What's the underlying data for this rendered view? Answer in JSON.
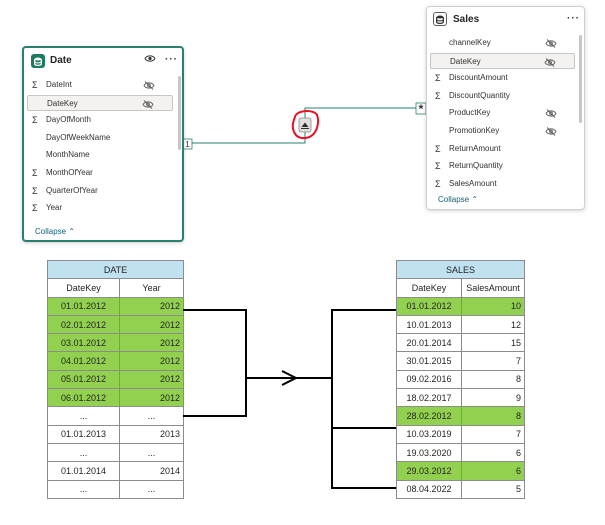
{
  "date_table": {
    "title": "Date",
    "collapse_label": "Collapse",
    "fields": [
      {
        "name": "DateInt",
        "sigma": true,
        "hidden": true,
        "selected": false
      },
      {
        "name": "DateKey",
        "sigma": false,
        "hidden": true,
        "selected": true
      },
      {
        "name": "DayOfMonth",
        "sigma": true,
        "hidden": false,
        "selected": false
      },
      {
        "name": "DayOfWeekName",
        "sigma": false,
        "hidden": false,
        "selected": false
      },
      {
        "name": "MonthName",
        "sigma": false,
        "hidden": false,
        "selected": false
      },
      {
        "name": "MonthOfYear",
        "sigma": true,
        "hidden": false,
        "selected": false
      },
      {
        "name": "QuarterOfYear",
        "sigma": true,
        "hidden": false,
        "selected": false
      },
      {
        "name": "Year",
        "sigma": true,
        "hidden": false,
        "selected": false
      }
    ]
  },
  "sales_table": {
    "title": "Sales",
    "collapse_label": "Collapse",
    "fields": [
      {
        "name": "channelKey",
        "sigma": false,
        "hidden": true,
        "selected": false
      },
      {
        "name": "DateKey",
        "sigma": false,
        "hidden": true,
        "selected": true
      },
      {
        "name": "DiscountAmount",
        "sigma": true,
        "hidden": false,
        "selected": false
      },
      {
        "name": "DiscountQuantity",
        "sigma": true,
        "hidden": false,
        "selected": false
      },
      {
        "name": "ProductKey",
        "sigma": false,
        "hidden": true,
        "selected": false
      },
      {
        "name": "PromotionKey",
        "sigma": false,
        "hidden": true,
        "selected": false
      },
      {
        "name": "ReturnAmount",
        "sigma": true,
        "hidden": false,
        "selected": false
      },
      {
        "name": "ReturnQuantity",
        "sigma": true,
        "hidden": false,
        "selected": false
      },
      {
        "name": "SalesAmount",
        "sigma": true,
        "hidden": false,
        "selected": false
      }
    ]
  },
  "relationship": {
    "one_label": "1",
    "many_label": "*"
  },
  "date_grid": {
    "title": "DATE",
    "headers": [
      "DateKey",
      "Year"
    ],
    "rows": [
      {
        "k": "01.01.2012",
        "v": "2012",
        "hl": true
      },
      {
        "k": "02.01.2012",
        "v": "2012",
        "hl": true
      },
      {
        "k": "03.01.2012",
        "v": "2012",
        "hl": true
      },
      {
        "k": "04.01.2012",
        "v": "2012",
        "hl": true
      },
      {
        "k": "05.01.2012",
        "v": "2012",
        "hl": true
      },
      {
        "k": "06.01.2012",
        "v": "2012",
        "hl": true
      },
      {
        "k": "...",
        "v": "...",
        "hl": false
      },
      {
        "k": "01.01.2013",
        "v": "2013",
        "hl": false
      },
      {
        "k": "...",
        "v": "...",
        "hl": false
      },
      {
        "k": "01.01.2014",
        "v": "2014",
        "hl": false
      },
      {
        "k": "...",
        "v": "...",
        "hl": false
      }
    ]
  },
  "sales_grid": {
    "title": "SALES",
    "headers": [
      "DateKey",
      "SalesAmount"
    ],
    "rows": [
      {
        "k": "01.01.2012",
        "v": "10",
        "hl": true
      },
      {
        "k": "10.01.2013",
        "v": "12",
        "hl": false
      },
      {
        "k": "20.01.2014",
        "v": "15",
        "hl": false
      },
      {
        "k": "30.01.2015",
        "v": "7",
        "hl": false
      },
      {
        "k": "09.02.2016",
        "v": "8",
        "hl": false
      },
      {
        "k": "18.02.2017",
        "v": "9",
        "hl": false
      },
      {
        "k": "28.02.2012",
        "v": "8",
        "hl": true
      },
      {
        "k": "10.03.2019",
        "v": "7",
        "hl": false
      },
      {
        "k": "19.03.2020",
        "v": "6",
        "hl": false
      },
      {
        "k": "29.03.2012",
        "v": "6",
        "hl": true
      },
      {
        "k": "08.04.2022",
        "v": "5",
        "hl": false
      }
    ]
  },
  "colors": {
    "accent": "#1e7b61",
    "highlight": "#92d050",
    "table_title": "#bfe1f0",
    "annotation": "#e81123"
  }
}
